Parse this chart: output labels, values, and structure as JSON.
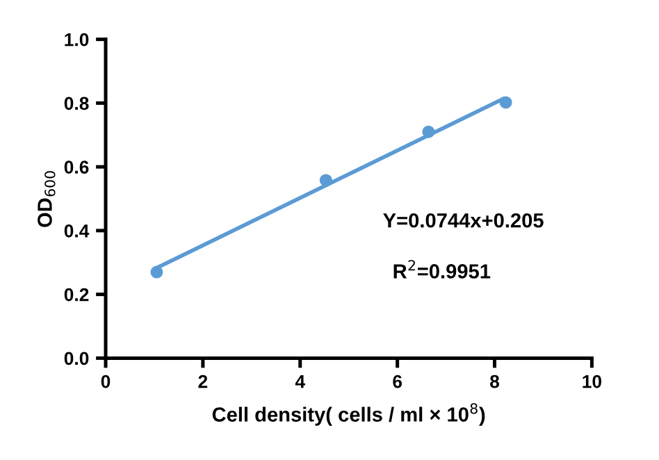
{
  "chart_data": {
    "type": "scatter",
    "xlabel": "Cell density( cells / ml × 10$^{8}$)",
    "ylabel": "OD$_{600}$",
    "series": [
      {
        "marker": "circle",
        "color": "#5b9bd5",
        "x": [
          1.05,
          4.53,
          6.64,
          8.23
        ],
        "values": [
          0.27,
          0.558,
          0.71,
          0.802
        ]
      },
      {
        "type": "line",
        "color": "#5b9bd5",
        "x": [
          1.05,
          8.17
        ],
        "values": [
          0.283,
          0.813
        ]
      }
    ],
    "annotations": [
      {
        "text": "Y=0.0744x+0.205"
      },
      {
        "text": "R$^{2}$=0.9951"
      }
    ],
    "xlim": [
      0,
      10
    ],
    "ylim": [
      0,
      1.0
    ],
    "xticks": [
      0,
      2,
      4,
      6,
      8,
      10
    ],
    "yticks": [
      {
        "value": 0,
        "label": "0.0"
      },
      0.2,
      0.4,
      0.6,
      0.8,
      {
        "value": 1,
        "label": "1.0"
      }
    ],
    "grid": false,
    "legend": false
  }
}
